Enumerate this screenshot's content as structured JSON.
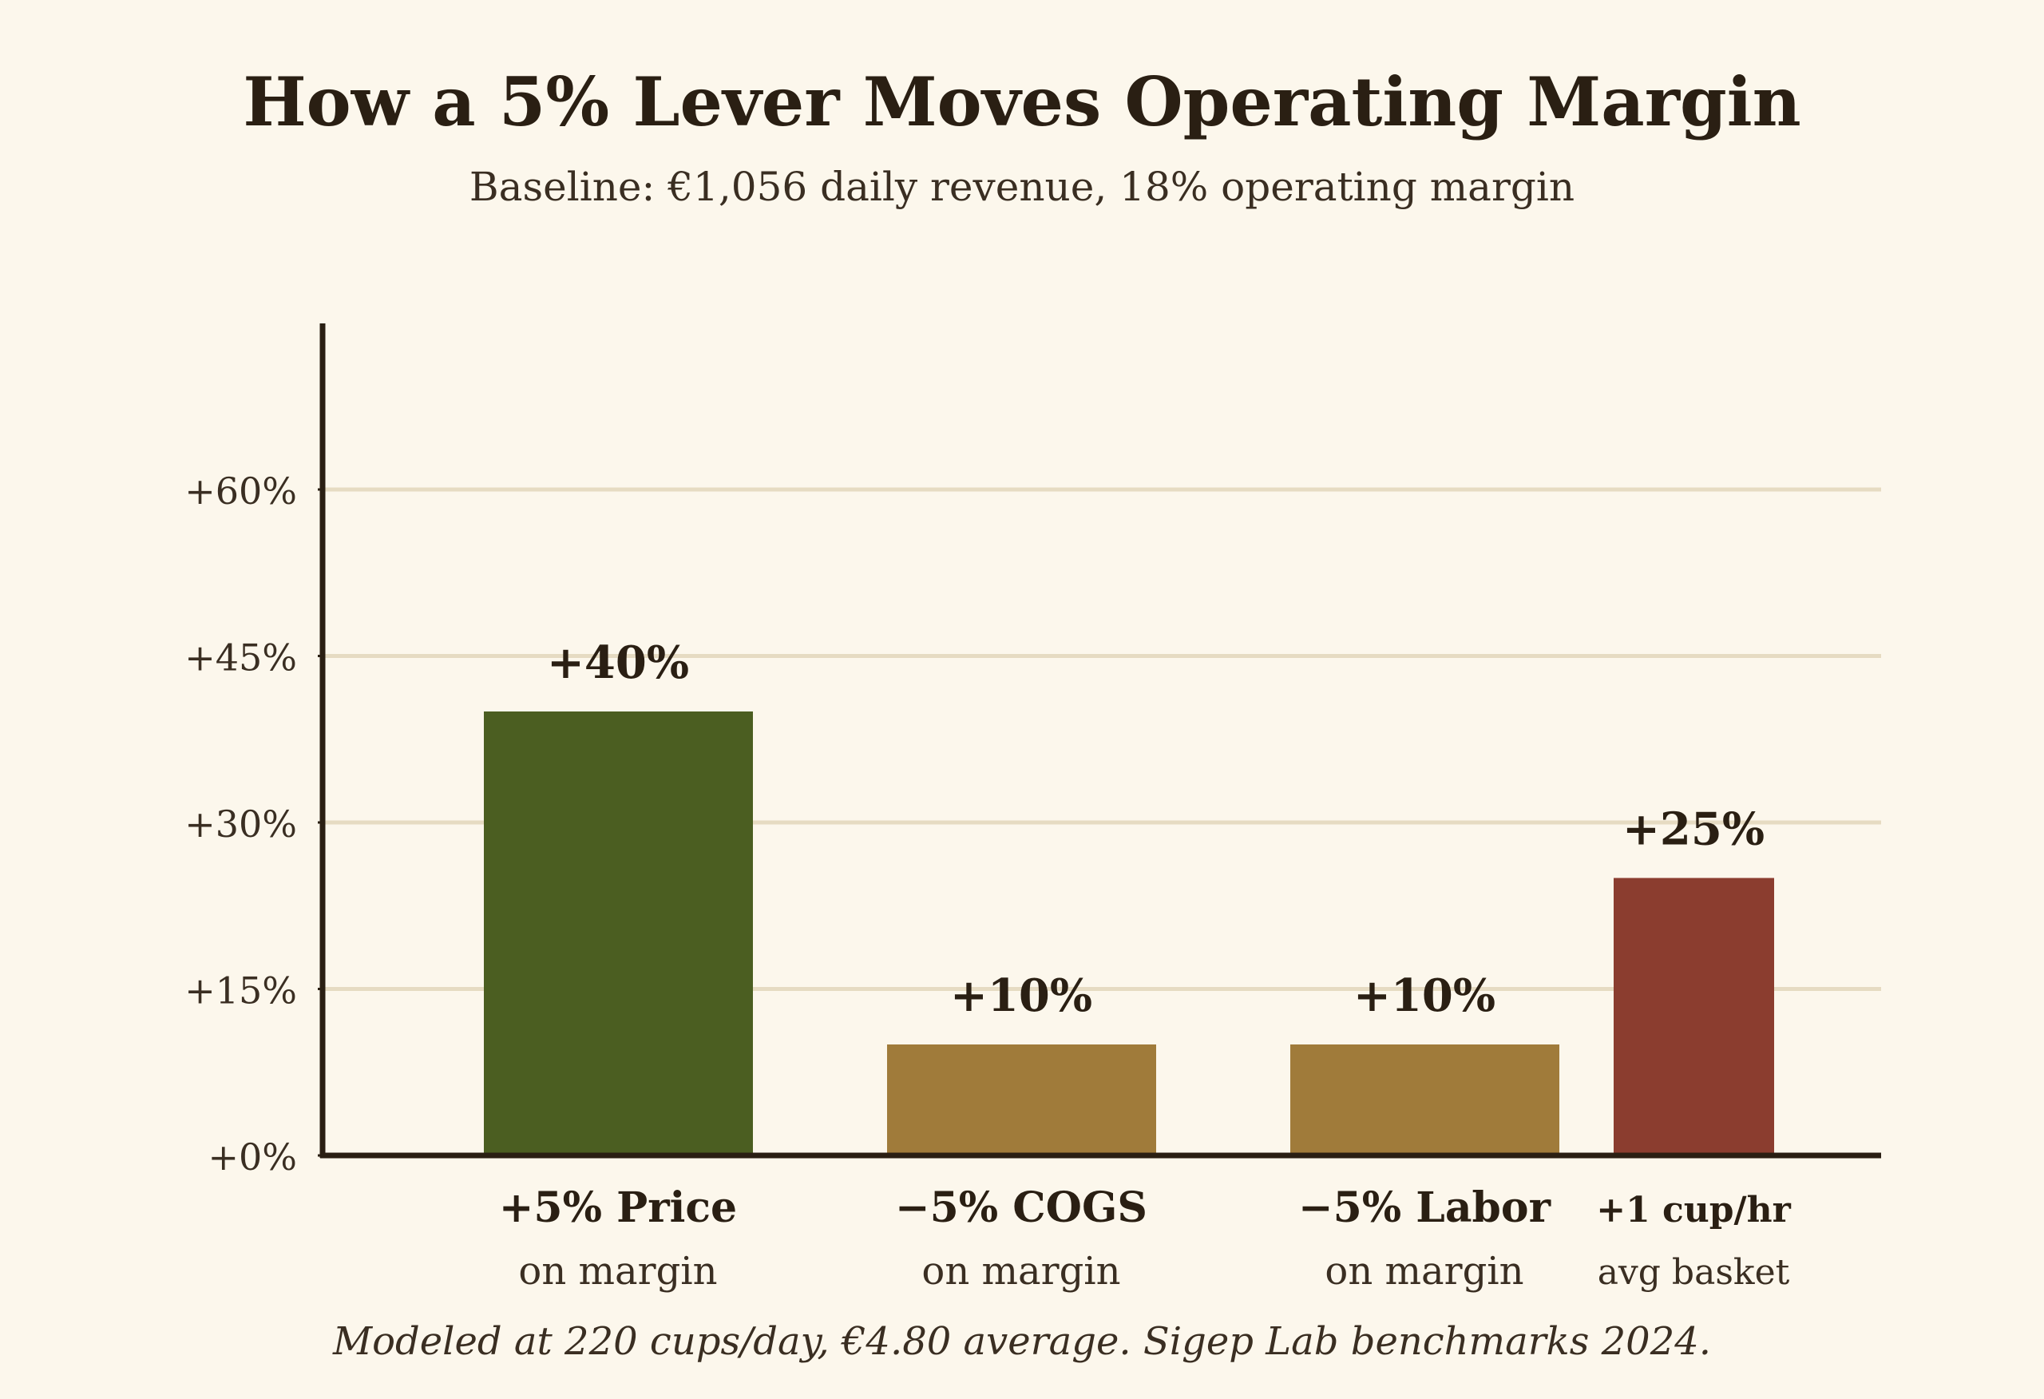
{
  "chart_data": {
    "type": "bar",
    "title": "How a 5% Lever Moves Operating Margin",
    "subtitle": "Baseline: €1,056 daily revenue, 18% operating margin",
    "footnote": "Modeled at 220 cups/day, €4.80 average. Sigep Lab benchmarks 2024.",
    "categories": [
      {
        "label": "+5% Price",
        "sublabel": "on margin",
        "value": 40,
        "value_label": "+40%",
        "color": "#4b5e21"
      },
      {
        "label": "−5% COGS",
        "sublabel": "on margin",
        "value": 10,
        "value_label": "+10%",
        "color": "#a07b3a"
      },
      {
        "label": "−5% Labor",
        "sublabel": "on margin",
        "value": 10,
        "value_label": "+10%",
        "color": "#a07b3a"
      },
      {
        "label": "+1 cup/hr",
        "sublabel": "avg basket",
        "value": 25,
        "value_label": "+25%",
        "color": "#8b3d2f"
      }
    ],
    "y_ticks": [
      {
        "value": 0,
        "label": "+0%"
      },
      {
        "value": 15,
        "label": "+15%"
      },
      {
        "value": 30,
        "label": "+30%"
      },
      {
        "value": 45,
        "label": "+45%"
      },
      {
        "value": 60,
        "label": "+60%"
      }
    ],
    "ylim": [
      0,
      75
    ],
    "grid": true,
    "xlabel": "",
    "ylabel": ""
  }
}
